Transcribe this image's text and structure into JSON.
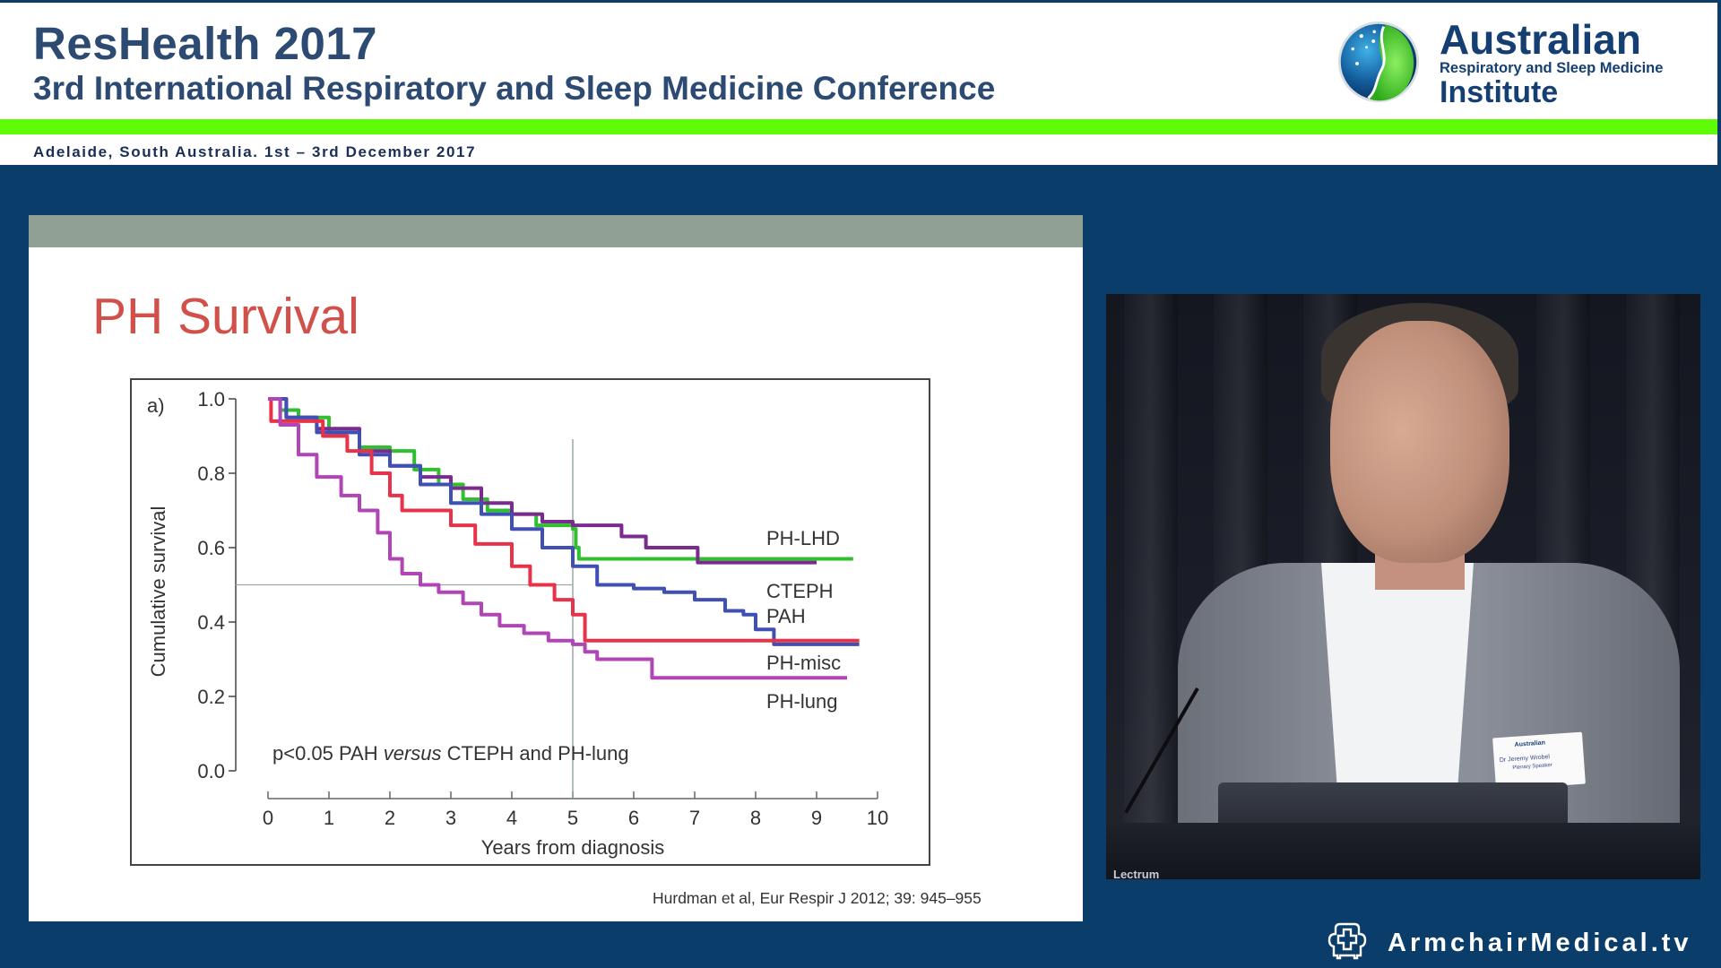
{
  "header": {
    "title": "ResHealth 2017",
    "subtitle": "3rd International Respiratory and Sleep Medicine Conference",
    "date_location": "Adelaide, South Australia. 1st – 3rd December 2017",
    "colors": {
      "title": "#2c4a72",
      "accent_bar": "#5efc06",
      "background": "#0b3d6b"
    }
  },
  "logo": {
    "icon": "globe-leaf-logo-icon",
    "line1": "Australian",
    "line2": "Respiratory and Sleep Medicine",
    "line3": "Institute"
  },
  "slide": {
    "title": "PH Survival",
    "title_color": "#d0504a",
    "citation": "Hurdman et al, Eur Respir J 2012; 39: 945–955"
  },
  "chart_data": {
    "type": "line",
    "subtype": "kaplan-meier step",
    "panel_label": "a)",
    "title": "",
    "xlabel": "Years from diagnosis",
    "ylabel": "Cumulative survival",
    "xlim": [
      0,
      10
    ],
    "ylim": [
      0,
      1.0
    ],
    "xticks": [
      "0",
      "1",
      "2",
      "3",
      "4",
      "5",
      "6",
      "7",
      "8",
      "9",
      "10"
    ],
    "yticks": [
      "0.0",
      "0.2",
      "0.4",
      "0.6",
      "0.8",
      "1.0"
    ],
    "grid": false,
    "reference_lines": [
      {
        "orientation": "vertical",
        "x": 5
      },
      {
        "orientation": "horizontal",
        "y": 0.5
      }
    ],
    "annotation": {
      "prefix": "p<0.05 PAH ",
      "italic": "versus",
      "suffix": " CTEPH and PH-lung"
    },
    "legend_position": "inline-right",
    "series": [
      {
        "name": "PH-LHD",
        "color": "#2fbf2f",
        "points": [
          [
            0,
            1.0
          ],
          [
            0.2,
            0.97
          ],
          [
            0.5,
            0.95
          ],
          [
            1.0,
            0.91
          ],
          [
            1.5,
            0.87
          ],
          [
            2.0,
            0.86
          ],
          [
            2.4,
            0.81
          ],
          [
            2.8,
            0.77
          ],
          [
            3.2,
            0.73
          ],
          [
            3.6,
            0.7
          ],
          [
            4.0,
            0.69
          ],
          [
            4.4,
            0.66
          ],
          [
            5.0,
            0.65
          ],
          [
            5.05,
            0.6
          ],
          [
            5.1,
            0.57
          ],
          [
            6.0,
            0.57
          ],
          [
            7.0,
            0.57
          ],
          [
            8.0,
            0.57
          ],
          [
            9.6,
            0.57
          ]
        ]
      },
      {
        "name": "CTEPH",
        "color": "#7b2a8f",
        "points": [
          [
            0,
            1.0
          ],
          [
            0.3,
            0.95
          ],
          [
            0.8,
            0.92
          ],
          [
            1.5,
            0.86
          ],
          [
            2.0,
            0.82
          ],
          [
            2.5,
            0.79
          ],
          [
            3.0,
            0.76
          ],
          [
            3.5,
            0.72
          ],
          [
            4.0,
            0.69
          ],
          [
            4.5,
            0.67
          ],
          [
            5.0,
            0.66
          ],
          [
            5.5,
            0.66
          ],
          [
            5.8,
            0.63
          ],
          [
            6.2,
            0.6
          ],
          [
            7.0,
            0.6
          ],
          [
            7.05,
            0.56
          ],
          [
            8.0,
            0.56
          ],
          [
            9.0,
            0.56
          ]
        ]
      },
      {
        "name": "PAH",
        "color": "#3f4fb3",
        "points": [
          [
            0,
            1.0
          ],
          [
            0.3,
            0.95
          ],
          [
            0.8,
            0.91
          ],
          [
            1.5,
            0.85
          ],
          [
            2.0,
            0.82
          ],
          [
            2.5,
            0.77
          ],
          [
            3.0,
            0.72
          ],
          [
            3.5,
            0.69
          ],
          [
            4.0,
            0.65
          ],
          [
            4.5,
            0.6
          ],
          [
            5.0,
            0.55
          ],
          [
            5.4,
            0.5
          ],
          [
            6.0,
            0.49
          ],
          [
            6.5,
            0.48
          ],
          [
            7.0,
            0.46
          ],
          [
            7.5,
            0.43
          ],
          [
            7.8,
            0.42
          ],
          [
            8.0,
            0.38
          ],
          [
            8.3,
            0.36
          ],
          [
            8.3,
            0.34
          ],
          [
            9.7,
            0.34
          ]
        ]
      },
      {
        "name": "PH-misc",
        "color": "#e8324a",
        "points": [
          [
            0,
            1.0
          ],
          [
            0.05,
            0.94
          ],
          [
            0.9,
            0.94
          ],
          [
            0.9,
            0.9
          ],
          [
            1.3,
            0.9
          ],
          [
            1.3,
            0.86
          ],
          [
            1.7,
            0.86
          ],
          [
            1.7,
            0.8
          ],
          [
            2.0,
            0.8
          ],
          [
            2.0,
            0.74
          ],
          [
            2.2,
            0.74
          ],
          [
            2.2,
            0.7
          ],
          [
            3.0,
            0.7
          ],
          [
            3.0,
            0.66
          ],
          [
            3.4,
            0.66
          ],
          [
            3.4,
            0.61
          ],
          [
            4.0,
            0.61
          ],
          [
            4.0,
            0.55
          ],
          [
            4.3,
            0.55
          ],
          [
            4.3,
            0.5
          ],
          [
            4.7,
            0.5
          ],
          [
            4.7,
            0.46
          ],
          [
            5.0,
            0.46
          ],
          [
            5.0,
            0.42
          ],
          [
            5.2,
            0.42
          ],
          [
            5.2,
            0.35
          ],
          [
            9.7,
            0.35
          ]
        ]
      },
      {
        "name": "PH-lung",
        "color": "#b045b5",
        "points": [
          [
            0,
            1.0
          ],
          [
            0.2,
            0.93
          ],
          [
            0.5,
            0.85
          ],
          [
            0.8,
            0.79
          ],
          [
            1.2,
            0.74
          ],
          [
            1.5,
            0.7
          ],
          [
            1.8,
            0.64
          ],
          [
            2.0,
            0.57
          ],
          [
            2.2,
            0.53
          ],
          [
            2.5,
            0.5
          ],
          [
            2.8,
            0.48
          ],
          [
            3.2,
            0.45
          ],
          [
            3.5,
            0.42
          ],
          [
            3.8,
            0.39
          ],
          [
            4.2,
            0.37
          ],
          [
            4.6,
            0.35
          ],
          [
            5.0,
            0.34
          ],
          [
            5.2,
            0.32
          ],
          [
            5.4,
            0.3
          ],
          [
            6.3,
            0.3
          ],
          [
            6.3,
            0.25
          ],
          [
            9.5,
            0.25
          ]
        ]
      }
    ]
  },
  "video": {
    "speaker_badge_org": "Australian",
    "speaker_badge_name": "Dr Jeremy Wrobel",
    "speaker_badge_role": "Plenary Speaker",
    "lectern_label": "Lectrum"
  },
  "footer": {
    "icon": "armchair-cross-icon",
    "brand": "ArmchairMedical.tv"
  }
}
